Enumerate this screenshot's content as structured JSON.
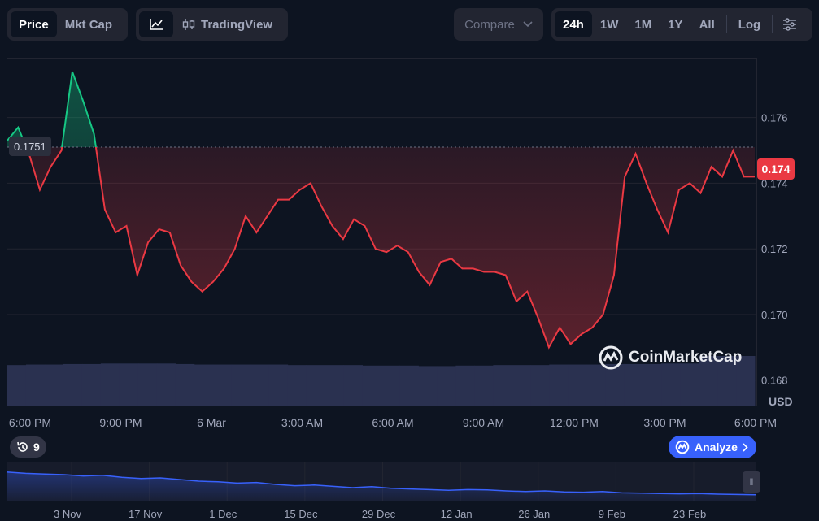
{
  "toolbar": {
    "price_label": "Price",
    "mktcap_label": "Mkt Cap",
    "tradingview_label": "TradingView",
    "compare_label": "Compare",
    "ranges": [
      "24h",
      "1W",
      "1M",
      "1Y",
      "All"
    ],
    "log_label": "Log"
  },
  "chart_data": {
    "type": "line",
    "x_ticks": [
      "6:00 PM",
      "9:00 PM",
      "6 Mar",
      "3:00 AM",
      "6:00 AM",
      "9:00 AM",
      "12:00 PM",
      "3:00 PM",
      "6:00 PM"
    ],
    "y_ticks": [
      "0.176",
      "0.174",
      "0.172",
      "0.170",
      "0.168"
    ],
    "ylim": [
      0.1672,
      0.1778
    ],
    "reference_price": 0.1751,
    "reference_label": "0.1751",
    "current_price_label": "0.174",
    "currency": "USD",
    "up_color": "#16c784",
    "down_color": "#ea3943",
    "series": [
      {
        "values": [
          0.1753,
          0.1757,
          0.1749,
          0.1738,
          0.1745,
          0.175,
          0.1774,
          0.1765,
          0.1755,
          0.1732,
          0.1725,
          0.1727,
          0.1712,
          0.1722,
          0.1726,
          0.1725,
          0.1715,
          0.171,
          0.1707,
          0.171,
          0.1714,
          0.172,
          0.173,
          0.1725,
          0.173,
          0.1735,
          0.1735,
          0.1738,
          0.174,
          0.1733,
          0.1727,
          0.1723,
          0.1729,
          0.1727,
          0.172,
          0.1719,
          0.1721,
          0.1719,
          0.1713,
          0.1709,
          0.1716,
          0.1717,
          0.1714,
          0.1714,
          0.1713,
          0.1713,
          0.1712,
          0.1704,
          0.1707,
          0.1699,
          0.169,
          0.1696,
          0.1691,
          0.1694,
          0.1696,
          0.17,
          0.1712,
          0.1742,
          0.1749,
          0.174,
          0.1732,
          0.1725,
          0.1738,
          0.174,
          0.1737,
          0.1745,
          0.1742,
          0.175,
          0.1742,
          0.1742
        ]
      }
    ],
    "volume_series": [
      0.82,
      0.83,
      0.83,
      0.84,
      0.84,
      0.85,
      0.85,
      0.85,
      0.85,
      0.84,
      0.83,
      0.83,
      0.83,
      0.83,
      0.83,
      0.82,
      0.82,
      0.82,
      0.82,
      0.81,
      0.81,
      0.81,
      0.8,
      0.8,
      0.81,
      0.81,
      0.82,
      0.82,
      0.82,
      0.83,
      0.83,
      0.83,
      0.84,
      0.84,
      0.84,
      0.85,
      0.85,
      1.0,
      1.0,
      1.0
    ],
    "brush_x_ticks": [
      "3 Nov",
      "17 Nov",
      "1 Dec",
      "15 Dec",
      "29 Dec",
      "12 Jan",
      "26 Jan",
      "9 Feb",
      "23 Feb"
    ],
    "brush_series": [
      0.78,
      0.74,
      0.72,
      0.7,
      0.66,
      0.68,
      0.62,
      0.58,
      0.6,
      0.55,
      0.5,
      0.48,
      0.44,
      0.46,
      0.4,
      0.36,
      0.38,
      0.34,
      0.3,
      0.33,
      0.28,
      0.26,
      0.24,
      0.22,
      0.24,
      0.23,
      0.2,
      0.18,
      0.2,
      0.17,
      0.16,
      0.18,
      0.14,
      0.13,
      0.12,
      0.11,
      0.12,
      0.1,
      0.09,
      0.08
    ]
  },
  "history_count": "9",
  "analyze_label": "Analyze",
  "watermark": "CoinMarketCap"
}
